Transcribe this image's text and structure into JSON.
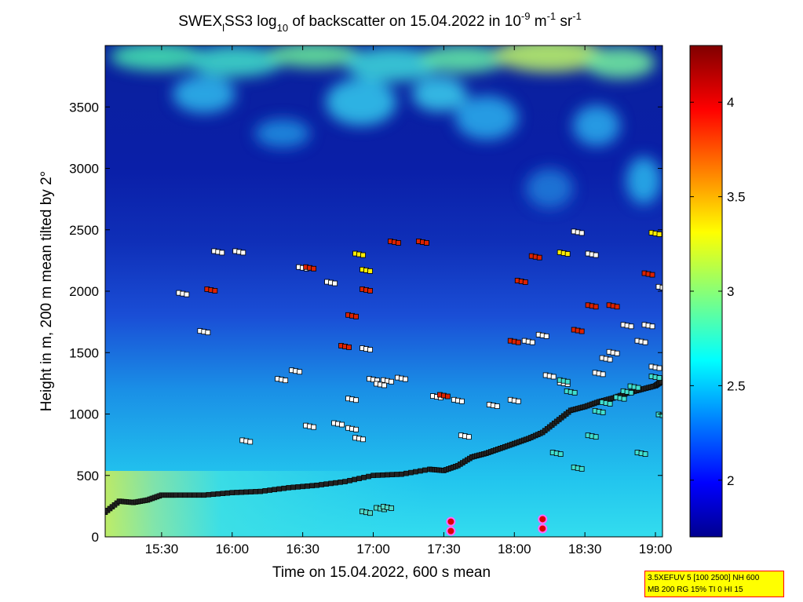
{
  "chart_data": {
    "type": "heatmap",
    "title": {
      "prefix": "SWEX",
      "sub_l": "l",
      "middle": "SS3 log",
      "sub_10": "10",
      "suffix": " of backscatter on 15.04.2022 in 10",
      "sup_m9": "-9",
      "unit_m": " m",
      "sup_m1a": "-1",
      "unit_sr": " sr",
      "sup_m1b": "-1"
    },
    "xlabel": "Time on 15.04.2022, 600 s mean",
    "ylabel": "Height in m, 200 m mean tilted by 2°",
    "x_ticks": [
      "15:30",
      "16:00",
      "16:30",
      "17:00",
      "17:30",
      "18:00",
      "18:30",
      "19:00"
    ],
    "x_tick_hours": [
      15.5,
      16.0,
      16.5,
      17.0,
      17.5,
      18.0,
      18.5,
      19.0
    ],
    "xlim_hours": [
      15.1,
      19.05
    ],
    "y_ticks": [
      "0",
      "500",
      "1000",
      "1500",
      "2000",
      "2500",
      "3000",
      "3500"
    ],
    "y_tick_values": [
      0,
      500,
      1000,
      1500,
      2000,
      2500,
      3000,
      3500
    ],
    "ylim": [
      0,
      4000
    ],
    "colorbar": {
      "range": [
        1.7,
        4.3
      ],
      "ticks": [
        "2",
        "2.5",
        "3",
        "3.5",
        "4"
      ],
      "tick_values": [
        2.0,
        2.5,
        3.0,
        3.5,
        4.0
      ],
      "colormap": "jet"
    },
    "boundary_layer_height": {
      "name": "boundary layer",
      "x": [
        15.1,
        15.2,
        15.3,
        15.4,
        15.5,
        15.6,
        15.8,
        16.0,
        16.2,
        16.4,
        16.6,
        16.8,
        17.0,
        17.2,
        17.4,
        17.5,
        17.6,
        17.7,
        17.8,
        17.9,
        18.0,
        18.1,
        18.2,
        18.3,
        18.4,
        18.5,
        18.6,
        18.7,
        18.8,
        18.9,
        19.0,
        19.05
      ],
      "y": [
        200,
        290,
        280,
        300,
        340,
        340,
        340,
        360,
        370,
        400,
        420,
        450,
        500,
        510,
        550,
        540,
        580,
        650,
        680,
        720,
        760,
        800,
        850,
        940,
        1030,
        1060,
        1100,
        1130,
        1170,
        1200,
        1230,
        1270
      ]
    },
    "cloud_base_white": {
      "x": [
        15.9,
        16.05,
        15.65,
        15.8,
        16.5,
        16.7,
        16.85,
        16.35,
        16.75,
        16.95,
        17.1,
        17.2,
        17.35,
        17.45,
        17.65,
        17.85,
        18.0,
        18.1,
        18.25,
        18.35,
        18.45,
        18.6,
        18.7,
        18.8,
        18.9,
        19.05,
        16.1,
        16.45,
        16.55,
        17.6,
        18.55,
        18.95,
        19.0,
        16.85,
        16.9,
        17.0,
        17.05,
        18.2,
        18.65
      ],
      "y": [
        2320,
        2320,
        1980,
        1670,
        2190,
        2070,
        1120,
        1280,
        920,
        1530,
        1270,
        1290,
        2400,
        1140,
        820,
        1070,
        1110,
        1590,
        1310,
        1250,
        2480,
        1330,
        1500,
        1720,
        1590,
        2030,
        780,
        1350,
        900,
        1110,
        2300,
        1720,
        1380,
        880,
        800,
        1280,
        1240,
        1640,
        1450
      ]
    },
    "cloud_base_red": {
      "x": [
        15.85,
        16.55,
        16.85,
        16.95,
        17.15,
        17.35,
        17.5,
        18.05,
        18.15,
        18.45,
        18.7,
        18.95,
        18.0,
        18.55,
        16.8
      ],
      "y": [
        2010,
        2190,
        1800,
        2010,
        2400,
        2400,
        1150,
        2080,
        2280,
        1680,
        1880,
        2140,
        1590,
        1880,
        1550
      ]
    },
    "cloud_base_yellow": {
      "x": [
        16.9,
        16.95,
        18.35,
        19.0
      ],
      "y": [
        2300,
        2170,
        2310,
        2470
      ]
    },
    "cloud_base_cyan": {
      "x": [
        18.3,
        18.45,
        18.55,
        18.6,
        18.65,
        18.75,
        18.8,
        18.85,
        19.0,
        19.05,
        18.35,
        18.4,
        18.9
      ],
      "y": [
        680,
        560,
        820,
        1020,
        1090,
        1130,
        1180,
        1220,
        1300,
        990,
        1270,
        1180,
        680
      ]
    },
    "magenta_markers": {
      "x": [
        17.55,
        18.2
      ],
      "y": [
        60,
        80
      ]
    },
    "low_cloud_segment": {
      "x": [
        16.95,
        17.05,
        17.1
      ],
      "y": [
        200,
        230,
        240
      ]
    }
  },
  "info_box": {
    "line1": "3.5XEFUV 5 [100 2500] NH 600",
    "line2": "MB 200 RG 15% TI 0 HI 15"
  }
}
